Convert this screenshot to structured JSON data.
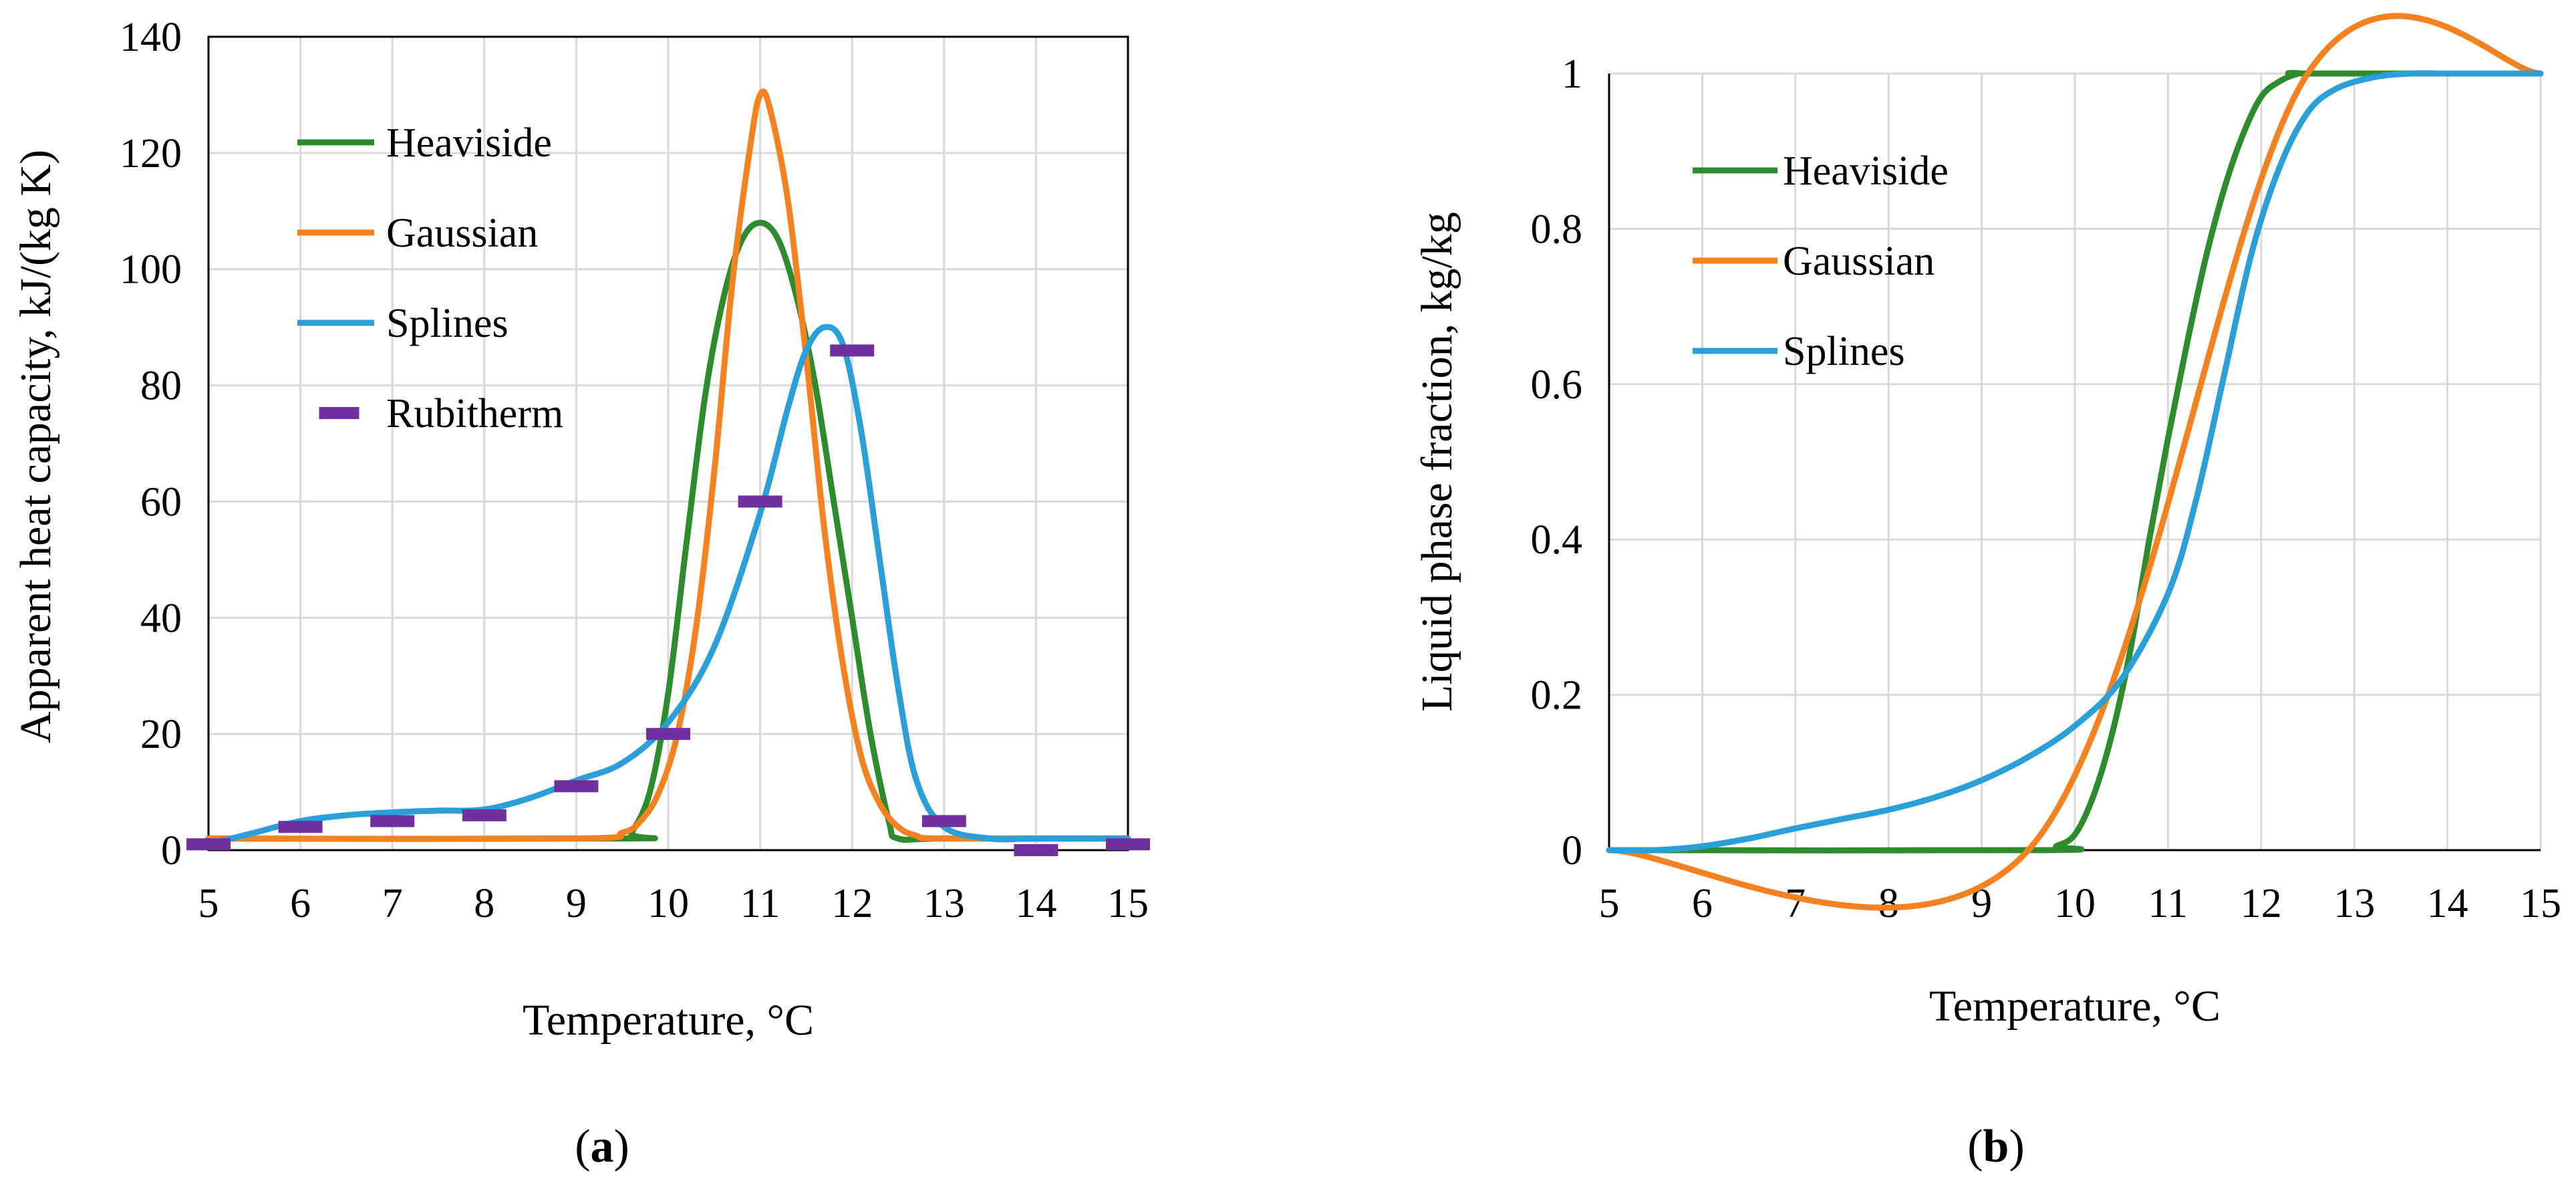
{
  "chart_data": [
    {
      "type": "line",
      "panel_label": "a",
      "xlabel": "Temperature,  °C",
      "ylabel": "Apparent heat capacity, kJ/(kg K)",
      "xlim": [
        5,
        15
      ],
      "ylim": [
        0,
        140
      ],
      "x_ticks": [
        "5",
        "6",
        "7",
        "8",
        "9",
        "10",
        "11",
        "12",
        "13",
        "14",
        "15"
      ],
      "y_ticks": [
        "0",
        "20",
        "40",
        "60",
        "80",
        "100",
        "120",
        "140"
      ],
      "grid": true,
      "legend_position": "upper-left",
      "series": [
        {
          "name": "Heaviside",
          "style": "line",
          "color": "#2e8b2e",
          "x": [
            5,
            9.5,
            9.6,
            9.8,
            10,
            10.2,
            10.4,
            10.6,
            10.8,
            11,
            11.2,
            11.4,
            11.6,
            11.8,
            12,
            12.2,
            12.4,
            12.5,
            13,
            15
          ],
          "y": [
            2,
            2,
            3,
            10,
            27,
            53,
            78,
            95,
            105,
            108,
            105,
            95,
            80,
            60,
            40,
            20,
            5,
            2,
            2,
            2
          ]
        },
        {
          "name": "Gaussian",
          "style": "line",
          "color": "#f58220",
          "x": [
            5,
            9,
            9.5,
            9.7,
            9.9,
            10.1,
            10.3,
            10.5,
            10.7,
            10.9,
            11,
            11.1,
            11.3,
            11.5,
            11.7,
            11.9,
            12.1,
            12.3,
            12.5,
            12.7,
            13,
            15
          ],
          "y": [
            2,
            2,
            3,
            5,
            10,
            20,
            38,
            65,
            98,
            122,
            130,
            128,
            112,
            85,
            55,
            32,
            16,
            8,
            4,
            2.5,
            2,
            2
          ]
        },
        {
          "name": "Splines",
          "style": "line",
          "color": "#2a9fd8",
          "x": [
            5,
            5.5,
            6,
            6.5,
            7,
            7.5,
            8,
            8.5,
            9,
            9.5,
            10,
            10.5,
            11,
            11.3,
            11.5,
            11.7,
            11.9,
            12.1,
            12.3,
            12.5,
            12.7,
            13,
            13.5,
            14,
            15
          ],
          "y": [
            1,
            3,
            5,
            6,
            6.5,
            6.8,
            7,
            9,
            12,
            15,
            22,
            35,
            58,
            76,
            86,
            90,
            87,
            72,
            50,
            28,
            12,
            4,
            2,
            2,
            2
          ]
        },
        {
          "name": "Rubitherm",
          "style": "marker",
          "color": "#7030a0",
          "x": [
            5,
            6,
            7,
            8,
            9,
            10,
            11,
            12,
            13,
            14,
            15
          ],
          "y": [
            1,
            4,
            5,
            6,
            11,
            20,
            60,
            86,
            5,
            0,
            1
          ]
        }
      ]
    },
    {
      "type": "line",
      "panel_label": "b",
      "xlabel": "Temperature,  °C",
      "ylabel": "Liquid phase fraction, kg/kg",
      "xlim": [
        5,
        15
      ],
      "ylim": [
        0,
        1
      ],
      "x_ticks": [
        "5",
        "6",
        "7",
        "8",
        "9",
        "10",
        "11",
        "12",
        "13",
        "14",
        "15"
      ],
      "y_ticks": [
        "0",
        "0.2",
        "0.4",
        "0.6",
        "0.8",
        "1"
      ],
      "grid": true,
      "legend_position": "upper-left",
      "series": [
        {
          "name": "Heaviside",
          "style": "line",
          "color": "#2e8b2e",
          "x": [
            5,
            9.7,
            9.8,
            10,
            10.2,
            10.4,
            10.6,
            10.8,
            11,
            11.2,
            11.4,
            11.6,
            11.8,
            12,
            12.2,
            12.4,
            12.5,
            15
          ],
          "y": [
            0,
            0,
            0.005,
            0.02,
            0.07,
            0.15,
            0.26,
            0.4,
            0.53,
            0.65,
            0.76,
            0.85,
            0.92,
            0.97,
            0.99,
            1,
            1,
            1
          ]
        },
        {
          "name": "Gaussian",
          "style": "line",
          "color": "#f58220",
          "x": [
            5,
            9.5,
            12.5,
            15
          ],
          "y": [
            0,
            0,
            1,
            1
          ]
        },
        {
          "name": "Splines",
          "style": "line",
          "color": "#2a9fd8",
          "x": [
            5,
            5.5,
            6,
            6.5,
            7,
            7.5,
            8,
            8.5,
            9,
            9.5,
            10,
            10.5,
            11,
            11.3,
            11.6,
            11.9,
            12.2,
            12.5,
            12.8,
            13.2,
            13.6,
            14,
            15
          ],
          "y": [
            0,
            0,
            0.005,
            0.015,
            0.028,
            0.04,
            0.052,
            0.068,
            0.09,
            0.12,
            0.16,
            0.22,
            0.33,
            0.45,
            0.61,
            0.77,
            0.88,
            0.95,
            0.98,
            0.995,
            1,
            1,
            1
          ]
        }
      ]
    }
  ]
}
